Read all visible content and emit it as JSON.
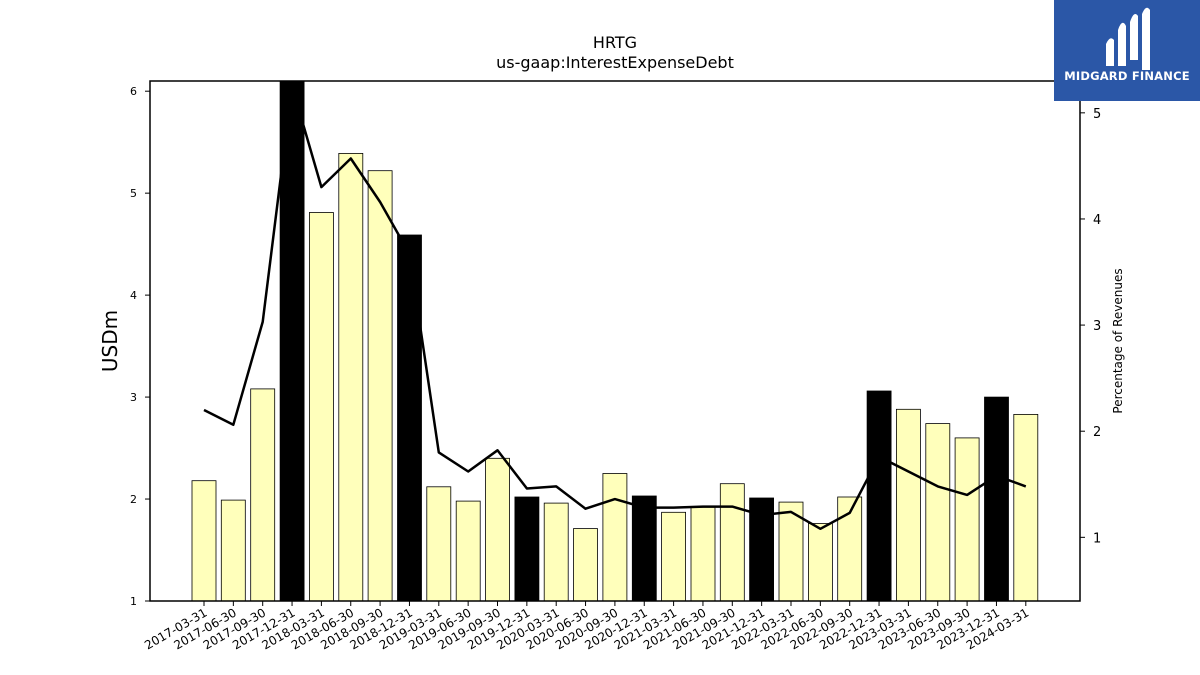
{
  "brand": {
    "name": "MIDGARD FINANCE",
    "icon": "midgard-logo-icon",
    "background_color": "#2b57a7"
  },
  "chart_data": {
    "type": "bar",
    "title": "HRTG",
    "subtitle": "us-gaap:InterestExpenseDebt",
    "ylabel": "USDm",
    "y2label": "Percentage of Revenues",
    "ylim": [
      1,
      6.1
    ],
    "y2lim": [
      0.4,
      5.3
    ],
    "yticks": [
      1,
      2,
      3,
      4,
      5,
      6
    ],
    "y2ticks": [
      1,
      2,
      3,
      4,
      5
    ],
    "categories": [
      "2017-03-31",
      "2017-06-30",
      "2017-09-30",
      "2017-12-31",
      "2018-03-31",
      "2018-06-30",
      "2018-09-30",
      "2018-12-31",
      "2019-03-31",
      "2019-06-30",
      "2019-09-30",
      "2019-12-31",
      "2020-03-31",
      "2020-06-30",
      "2020-09-30",
      "2020-12-31",
      "2021-03-31",
      "2021-06-30",
      "2021-09-30",
      "2021-12-31",
      "2022-03-31",
      "2022-06-30",
      "2022-09-30",
      "2022-12-31",
      "2023-03-31",
      "2023-06-30",
      "2023-09-30",
      "2023-12-31",
      "2024-03-31"
    ],
    "series": [
      {
        "kind": "bar",
        "axis": "left",
        "values": [
          2.18,
          1.99,
          3.08,
          6.1,
          4.81,
          5.39,
          5.22,
          4.59,
          2.12,
          1.98,
          2.4,
          2.02,
          1.96,
          1.71,
          2.25,
          2.03,
          1.87,
          1.92,
          2.15,
          2.01,
          1.97,
          1.76,
          2.02,
          3.06,
          2.88,
          2.74,
          2.6,
          3.0,
          2.83
        ],
        "year_end_color": "#000000",
        "quarter_color": "#ffffbb"
      },
      {
        "kind": "line",
        "axis": "right",
        "values": [
          2.2,
          2.06,
          3.03,
          5.25,
          4.3,
          4.57,
          4.16,
          3.67,
          1.8,
          1.62,
          1.82,
          1.46,
          1.48,
          1.27,
          1.36,
          1.28,
          1.28,
          1.29,
          1.29,
          1.21,
          1.24,
          1.08,
          1.23,
          1.76,
          1.62,
          1.48,
          1.4,
          1.58,
          1.48
        ],
        "color": "#000000"
      }
    ]
  }
}
